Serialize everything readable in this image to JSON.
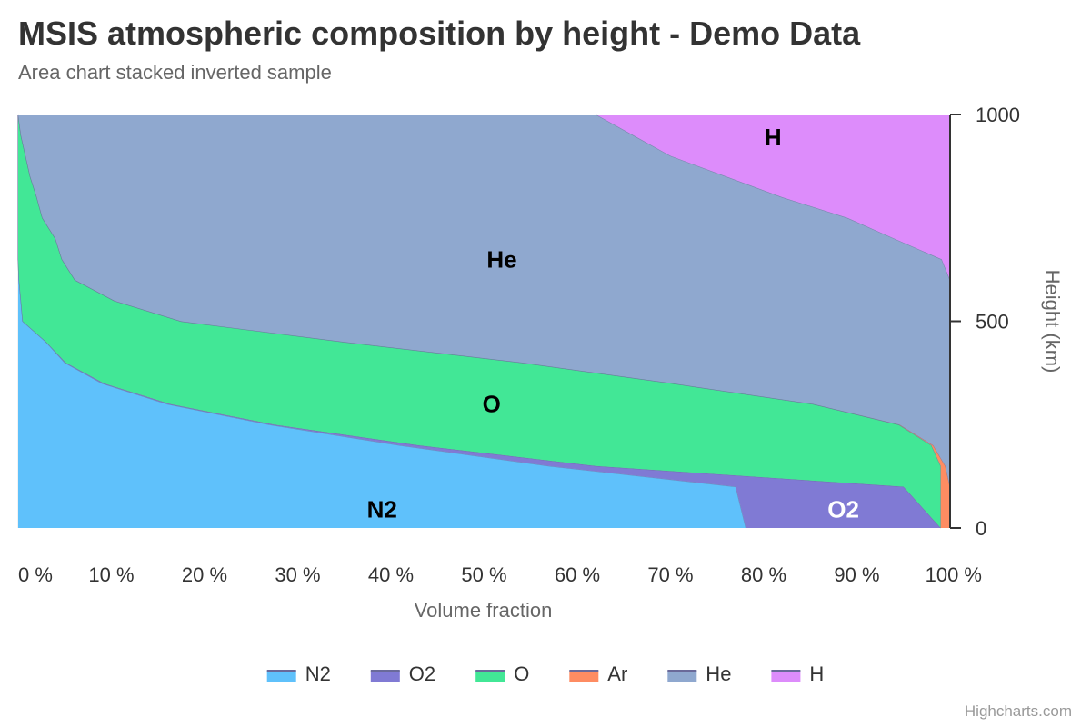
{
  "title": "MSIS atmospheric composition by height - Demo Data",
  "subtitle": "Area chart stacked inverted sample",
  "credits": "Highcharts.com",
  "chart_data": {
    "type": "area",
    "stacking": "percent",
    "inverted": true,
    "title": "MSIS atmospheric composition by height - Demo Data",
    "subtitle": "Area chart stacked inverted sample",
    "xlabel": "Height (km)",
    "ylabel": "Volume fraction",
    "xlim": [
      0,
      1000
    ],
    "ylim": [
      0,
      100
    ],
    "height_axis_ticks": [
      "0",
      "500",
      "1000"
    ],
    "fraction_axis_ticks": [
      "0 %",
      "10 %",
      "20 %",
      "30 %",
      "40 %",
      "50 %",
      "60 %",
      "70 %",
      "80 %",
      "90 %",
      "100 %"
    ],
    "grid": true,
    "legend": "bottom-center",
    "heights": [
      0,
      100,
      150,
      200,
      250,
      300,
      350,
      400,
      450,
      500,
      550,
      600,
      650,
      700,
      750,
      800,
      850,
      900,
      950,
      1000
    ],
    "series": [
      {
        "name": "N2",
        "label": "N2",
        "color": "#5fc1fb",
        "label_color": "#000000",
        "values": [
          78.1,
          77.0,
          57.0,
          41.0,
          27.0,
          16.0,
          9.0,
          5.0,
          3.0,
          0.5,
          0.3,
          0.1,
          0,
          0,
          0,
          0,
          0,
          0,
          0,
          0
        ]
      },
      {
        "name": "O2",
        "label": "O2",
        "color": "#807ad4",
        "label_color": "#ffffff",
        "values": [
          20.9,
          18.0,
          5.0,
          2.0,
          0.5,
          0.3,
          0.2,
          0.1,
          0,
          0,
          0,
          0,
          0,
          0,
          0,
          0,
          0,
          0,
          0,
          0
        ]
      },
      {
        "name": "O",
        "label": "O",
        "color": "#42e796",
        "label_color": "#000000",
        "values": [
          0,
          4.0,
          37.0,
          55.0,
          67.0,
          69.0,
          61.0,
          49.0,
          32.0,
          17.0,
          10.0,
          6.0,
          4.7,
          4.0,
          2.6,
          2.0,
          1.3,
          0.8,
          0.3,
          0
        ]
      },
      {
        "name": "Ar",
        "label": "",
        "color": "#fe8c62",
        "label_color": "#000000",
        "values": [
          1.0,
          1.0,
          0.5,
          0.2,
          0.1,
          0,
          0,
          0,
          0,
          0,
          0,
          0,
          0,
          0,
          0,
          0,
          0,
          0,
          0,
          0
        ]
      },
      {
        "name": "He",
        "label": "He",
        "color": "#8fa8cf",
        "label_color": "#000000",
        "values": [
          0,
          0,
          0.5,
          1.8,
          5.4,
          14.7,
          29.8,
          45.9,
          65.0,
          82.5,
          89.7,
          93.9,
          94.4,
          90.0,
          86.4,
          80.0,
          74.7,
          69.2,
          65.7,
          62.0
        ]
      },
      {
        "name": "H",
        "label": "H",
        "color": "#dd8cfb",
        "label_color": "#000000",
        "values": [
          0,
          0,
          0,
          0,
          0,
          0,
          0,
          0,
          0,
          0,
          0,
          0,
          0.9,
          6.0,
          11.0,
          18.0,
          24.0,
          30.0,
          34.0,
          38.0
        ]
      }
    ]
  }
}
